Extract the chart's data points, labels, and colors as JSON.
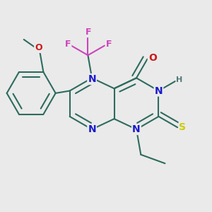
{
  "bg_color": "#eaeaea",
  "bond_color": "#2d6b5e",
  "bond_width": 1.5,
  "dbo": 0.025,
  "atom_colors": {
    "N": "#1a1acc",
    "O": "#cc1a1a",
    "S": "#cccc00",
    "F": "#cc44bb",
    "H": "#557777",
    "C": "#2d6b5e"
  },
  "font_size": 9,
  "fig_size": [
    3.0,
    3.0
  ],
  "dpi": 100
}
